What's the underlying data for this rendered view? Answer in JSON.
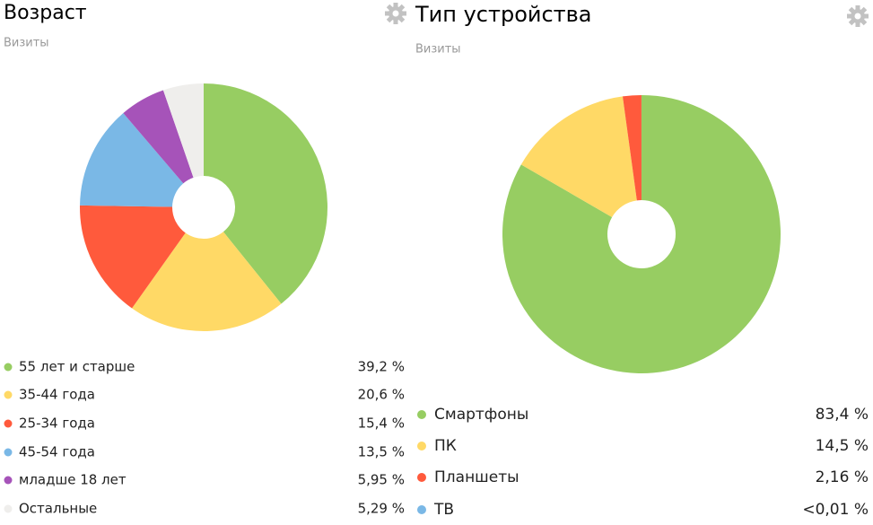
{
  "chart_data": [
    {
      "type": "pie",
      "title": "Возраст",
      "subtitle": "Визиты",
      "categories": [
        "55 лет и старше",
        "35-44 года",
        "25-34 года",
        "45-54 года",
        "младше 18 лет",
        "Остальные"
      ],
      "values": [
        39.2,
        20.6,
        15.4,
        13.5,
        5.95,
        5.29
      ],
      "value_labels": [
        "39,2 %",
        "20,6 %",
        "15,4 %",
        "13,5 %",
        "5,95 %",
        "5,29 %"
      ],
      "colors": [
        "#97cd62",
        "#ffd966",
        "#ff5a3c",
        "#7ab8e6",
        "#a653b9",
        "#efeeec"
      ]
    },
    {
      "type": "pie",
      "title": "Тип устройства",
      "subtitle": "Визиты",
      "categories": [
        "Смартфоны",
        "ПК",
        "Планшеты",
        "ТВ"
      ],
      "values": [
        83.4,
        14.5,
        2.16,
        0.005
      ],
      "value_labels": [
        "83,4 %",
        "14,5 %",
        "2,16 %",
        "<0,01 %"
      ],
      "colors": [
        "#97cd62",
        "#ffd966",
        "#ff5a3c",
        "#7ab8e6"
      ]
    }
  ]
}
